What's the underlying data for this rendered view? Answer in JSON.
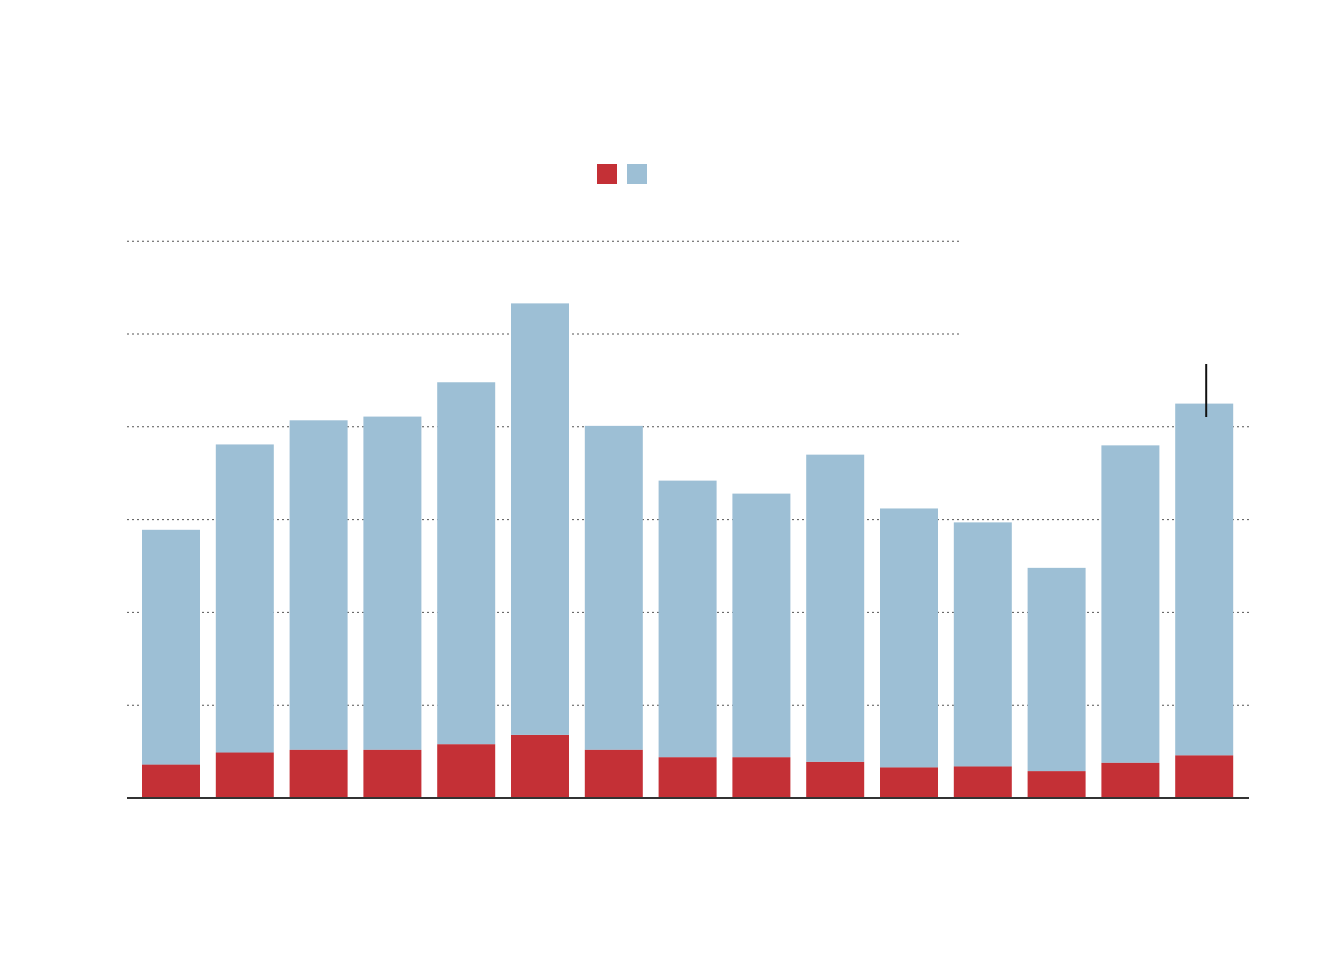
{
  "chart_data": {
    "type": "bar",
    "stacked": true,
    "title": "",
    "xlabel": "",
    "ylabel": "",
    "ylim": [
      0,
      6
    ],
    "gridlines": [
      1,
      2,
      3,
      4,
      5,
      6
    ],
    "grid": true,
    "legend": {
      "placement": "top-center",
      "entries": [
        {
          "color": "#c43036"
        },
        {
          "color": "#9dbfd5"
        }
      ]
    },
    "colors": {
      "series_0": "#c43036",
      "series_1": "#9dbfd5",
      "gridline": "#555555",
      "baseline": "#333333"
    },
    "categories": [
      "",
      "",
      "",
      "",
      "",
      "",
      "",
      "",
      "",
      "",
      "",
      "",
      "",
      "",
      ""
    ],
    "series": [
      {
        "values": [
          0.36,
          0.49,
          0.52,
          0.52,
          0.58,
          0.68,
          0.52,
          0.44,
          0.44,
          0.39,
          0.33,
          0.34,
          0.29,
          0.38,
          0.46
        ]
      },
      {
        "values": [
          2.53,
          3.32,
          3.55,
          3.59,
          3.9,
          4.65,
          3.49,
          2.98,
          2.84,
          3.31,
          2.79,
          2.63,
          2.19,
          3.42,
          3.79
        ]
      }
    ],
    "annotation": {
      "category_index": 14
    }
  }
}
